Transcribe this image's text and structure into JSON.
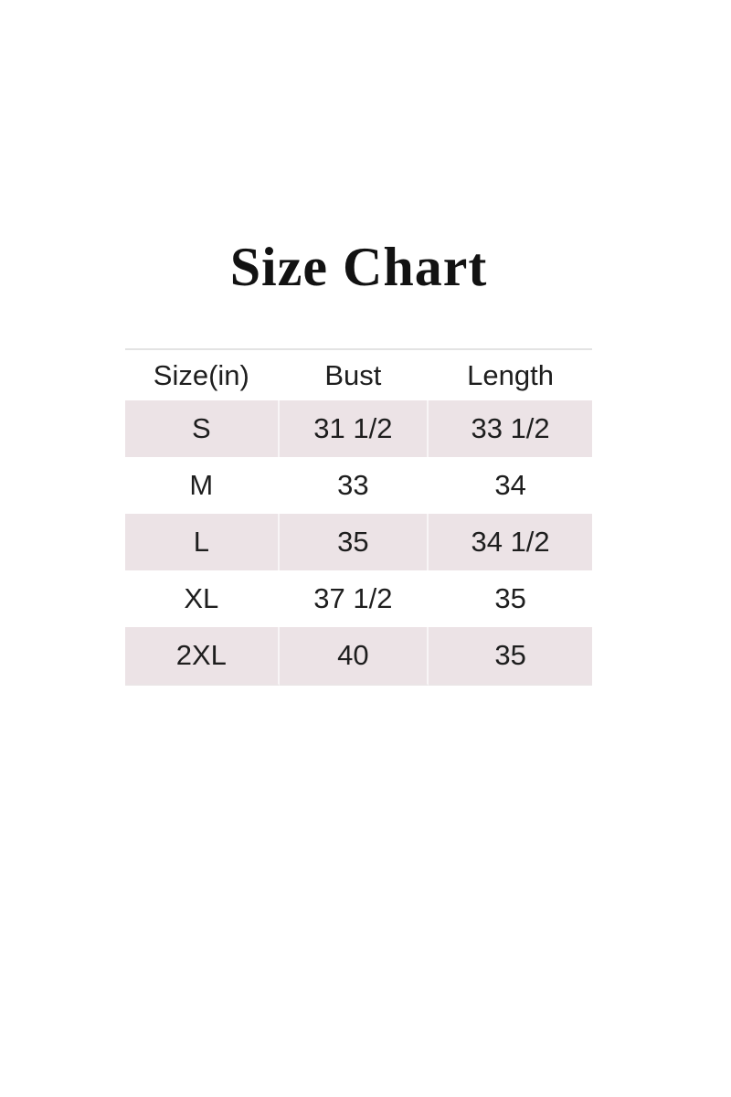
{
  "title": "Size Chart",
  "chart_data": {
    "type": "table",
    "title": "Size Chart",
    "columns": [
      "Size(in)",
      "Bust",
      "Length"
    ],
    "rows": [
      [
        "S",
        "31 1/2",
        "33 1/2"
      ],
      [
        "M",
        "33",
        "34"
      ],
      [
        "L",
        "35",
        "34 1/2"
      ],
      [
        "XL",
        "37 1/2",
        "35"
      ],
      [
        "2XL",
        "40",
        "35"
      ]
    ],
    "layout": {
      "striped": true,
      "shaded_row_indexes": [
        0,
        2,
        4
      ],
      "header_background": "#ffffff",
      "legend": "none",
      "grid": "horizontal-rules-top-and-bottom"
    }
  },
  "colors": {
    "row_shade": "#ece3e6",
    "top_rule": "#e3e3e3",
    "bottom_rule": "#eae5e6",
    "column_divider": "#f6f0f2",
    "text": "#1e1e1e",
    "title_text": "#121212",
    "background": "#ffffff"
  }
}
